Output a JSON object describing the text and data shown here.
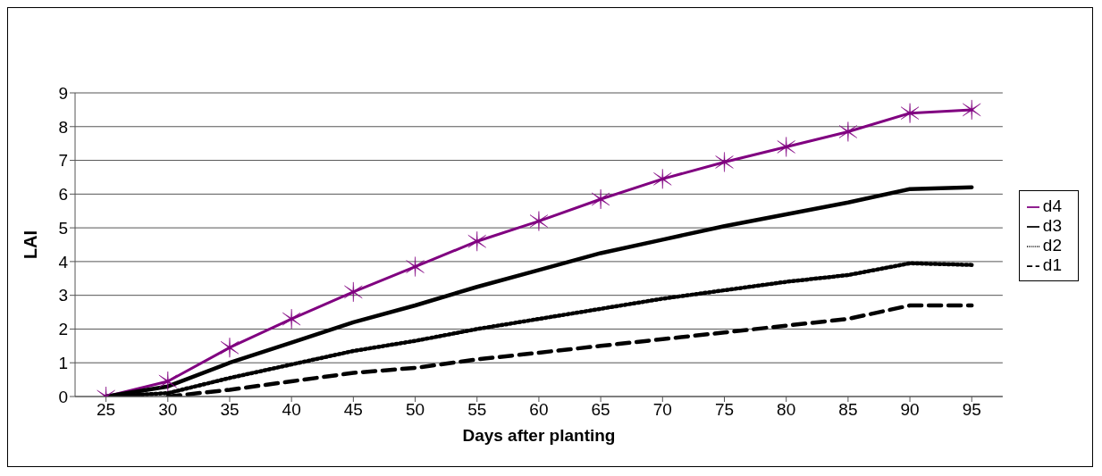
{
  "chart_data": {
    "type": "line",
    "xlabel": "Days after planting",
    "ylabel": "LAI",
    "categories": [
      "25",
      "30",
      "35",
      "40",
      "45",
      "50",
      "55",
      "60",
      "65",
      "70",
      "75",
      "80",
      "85",
      "90",
      "95"
    ],
    "series": [
      {
        "name": "d4",
        "color": "#800080",
        "marker": "cross",
        "line_style": "solid",
        "values": [
          0,
          0.45,
          1.45,
          2.3,
          3.1,
          3.85,
          4.6,
          5.2,
          5.85,
          6.45,
          6.95,
          7.4,
          7.85,
          8.4,
          8.5
        ]
      },
      {
        "name": "d3",
        "color": "#000000",
        "marker": "none",
        "line_style": "solid",
        "values": [
          0,
          0.3,
          1.0,
          1.6,
          2.2,
          2.7,
          3.25,
          3.75,
          4.25,
          4.65,
          5.05,
          5.4,
          5.75,
          6.15,
          6.2
        ]
      },
      {
        "name": "d2",
        "color": "#000000",
        "marker": "none",
        "line_style": "dotted",
        "values": [
          0,
          0.1,
          0.55,
          0.95,
          1.35,
          1.65,
          2.0,
          2.3,
          2.6,
          2.9,
          3.15,
          3.4,
          3.6,
          3.95,
          3.9
        ]
      },
      {
        "name": "d1",
        "color": "#000000",
        "marker": "none",
        "line_style": "dashed",
        "values": [
          null,
          0,
          0.2,
          0.45,
          0.7,
          0.85,
          1.1,
          1.3,
          1.5,
          1.7,
          1.9,
          2.1,
          2.3,
          2.7,
          2.7
        ]
      }
    ],
    "ylim": [
      0,
      9
    ],
    "yticks": [
      0,
      1,
      2,
      3,
      4,
      5,
      6,
      7,
      8,
      9
    ],
    "grid": "y",
    "legend": "right"
  }
}
